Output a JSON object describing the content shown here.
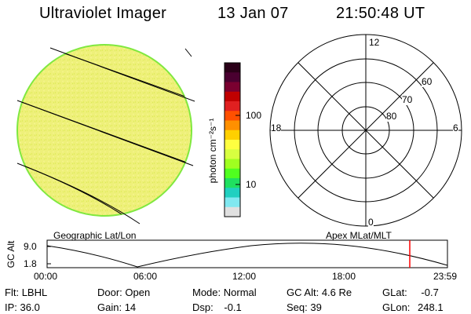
{
  "header": {
    "instrument": "Ultraviolet Imager",
    "date": "13 Jan 07",
    "time": "21:50:48 UT"
  },
  "colorbar": {
    "unit_label": "photon cm⁻²s⁻¹",
    "ticks": [
      "100",
      "10"
    ],
    "colors_top_to_bottom": [
      "#2a0018",
      "#4a0030",
      "#7a0030",
      "#c00000",
      "#e02020",
      "#ff5000",
      "#ff9000",
      "#ffd000",
      "#ffff40",
      "#d8ff40",
      "#a0ff20",
      "#50ff20",
      "#20e060",
      "#20d0c0",
      "#80e8f0",
      "#e0e0e0"
    ]
  },
  "left_panel": {
    "label": "Geographic Lat/Lon",
    "disk_color": "#eef07a",
    "rim_color": "#80e840"
  },
  "right_panel": {
    "label": "Apex MLat/MLT",
    "mlt_labels": {
      "top": "12",
      "left": "18",
      "right": "6",
      "bottom": "0"
    },
    "lat_labels": [
      "60",
      "70",
      "80"
    ]
  },
  "altitude_plot": {
    "ylabel": "GC Alt",
    "yticks": [
      "9.0",
      "1.8"
    ],
    "xticks": [
      "00:00",
      "06:00",
      "12:00",
      "18:00",
      "23:59"
    ],
    "current_time_marker_color": "#ff0000"
  },
  "info": {
    "row1": [
      {
        "key": "Flt:",
        "value": "LBHL"
      },
      {
        "key": "Door:",
        "value": "Open"
      },
      {
        "key": "Mode:",
        "value": "Normal"
      },
      {
        "key": "GC Alt:",
        "value": "4.6 Re"
      },
      {
        "key": "GLat:",
        "value": "-0.7"
      }
    ],
    "row2": [
      {
        "key": "IP:",
        "value": "36.0"
      },
      {
        "key": "Gain:",
        "value": "14"
      },
      {
        "key": "Dsp:",
        "value": "-0.1"
      },
      {
        "key": "Seq:",
        "value": "39"
      },
      {
        "key": "GLon:",
        "value": "248.1"
      }
    ]
  }
}
